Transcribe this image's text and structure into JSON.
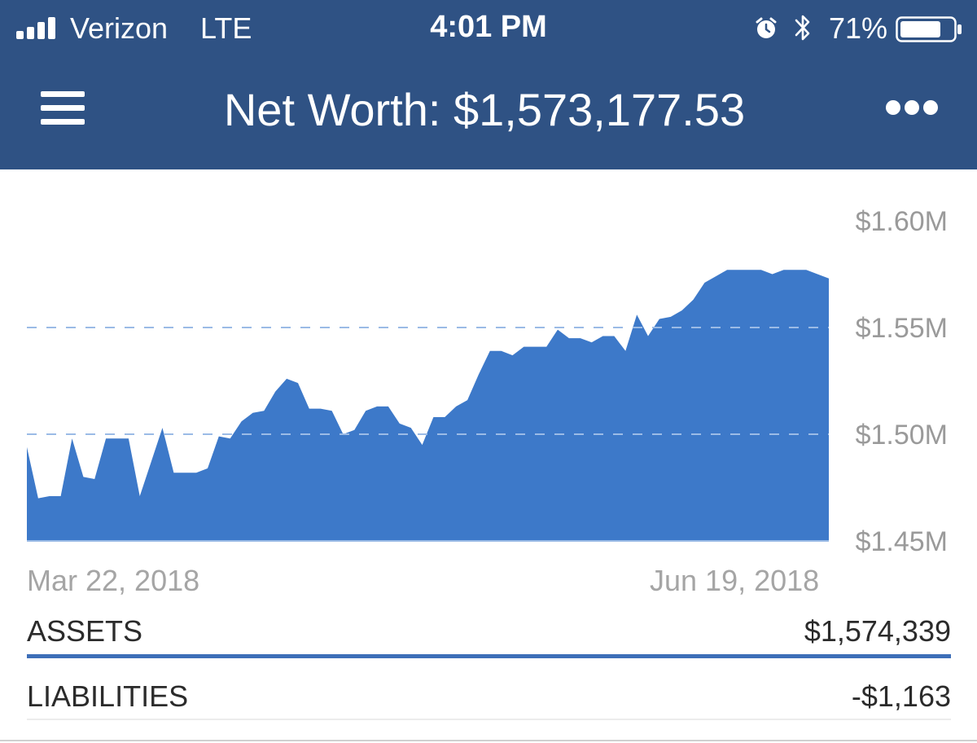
{
  "status_bar": {
    "carrier": "Verizon",
    "network": "LTE",
    "time": "4:01 PM",
    "battery": "71%",
    "icons": [
      "signal-bars-icon",
      "alarm-clock-icon",
      "bluetooth-icon",
      "battery-icon"
    ]
  },
  "header": {
    "title": "Net Worth: $1,573,177.53",
    "menu_icon": "hamburger-menu-icon",
    "more_icon": "more-dots-icon"
  },
  "colors": {
    "header_bg": "#2f5284",
    "chart_fill": "#3d79c9",
    "accent_underline": "#3d6fb8"
  },
  "chart_data": {
    "type": "area",
    "x_start_label": "Mar 22, 2018",
    "x_end_label": "Jun 19, 2018",
    "y_ticks": [
      "$1.45M",
      "$1.50M",
      "$1.55M",
      "$1.60M"
    ],
    "y_tick_values": [
      1.45,
      1.5,
      1.55,
      1.6
    ],
    "ylim": [
      1.45,
      1.6
    ],
    "gridlines": "dashed",
    "units": "millions USD",
    "series": [
      {
        "values": [
          1.494,
          1.47,
          1.471,
          1.471,
          1.498,
          1.48,
          1.479,
          1.498,
          1.498,
          1.498,
          1.471,
          1.487,
          1.503,
          1.482,
          1.482,
          1.482,
          1.484,
          1.499,
          1.498,
          1.506,
          1.51,
          1.511,
          1.52,
          1.526,
          1.524,
          1.512,
          1.512,
          1.511,
          1.5,
          1.502,
          1.511,
          1.513,
          1.513,
          1.505,
          1.503,
          1.495,
          1.508,
          1.508,
          1.513,
          1.516,
          1.528,
          1.539,
          1.539,
          1.537,
          1.541,
          1.541,
          1.541,
          1.549,
          1.545,
          1.545,
          1.543,
          1.546,
          1.546,
          1.539,
          1.556,
          1.546,
          1.554,
          1.555,
          1.558,
          1.563,
          1.571,
          1.574,
          1.577,
          1.577,
          1.577,
          1.577,
          1.575,
          1.577,
          1.577,
          1.577,
          1.575,
          1.573
        ]
      }
    ]
  },
  "summary": {
    "assets_label": "ASSETS",
    "assets_value": "$1,574,339",
    "liabilities_label": "LIABILITIES",
    "liabilities_value": "-$1,163"
  }
}
